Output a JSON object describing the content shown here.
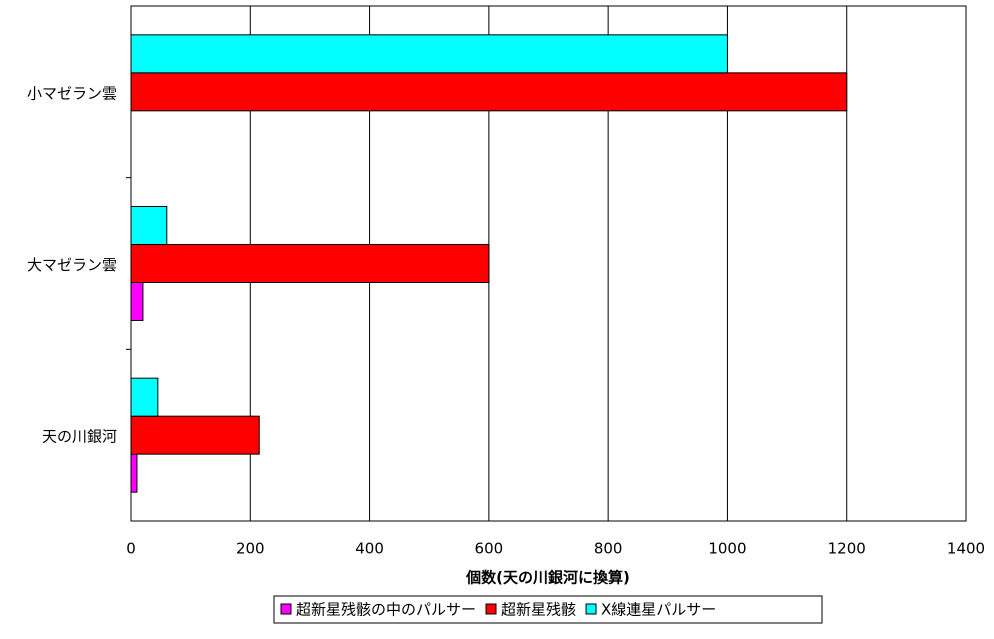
{
  "chart_data": {
    "type": "hbar",
    "x_label": "個数(天の川銀河に換算)",
    "categories": [
      "小マゼラン雲",
      "大マゼラン雲",
      "天の川銀河"
    ],
    "series": [
      {
        "name": "超新星残骸の中のパルサー",
        "color": "#ff00ff",
        "values": [
          0,
          20,
          10
        ]
      },
      {
        "name": "超新星残骸",
        "color": "#ff0000",
        "values": [
          1200,
          600,
          215
        ]
      },
      {
        "name": "X線連星パルサー",
        "color": "#00ffff",
        "values": [
          1000,
          60,
          45
        ]
      }
    ],
    "xlim": [
      0,
      1400
    ],
    "xticks": [
      0,
      200,
      400,
      600,
      800,
      1000,
      1200,
      1400
    ],
    "grid": true,
    "legend": "bottom"
  }
}
